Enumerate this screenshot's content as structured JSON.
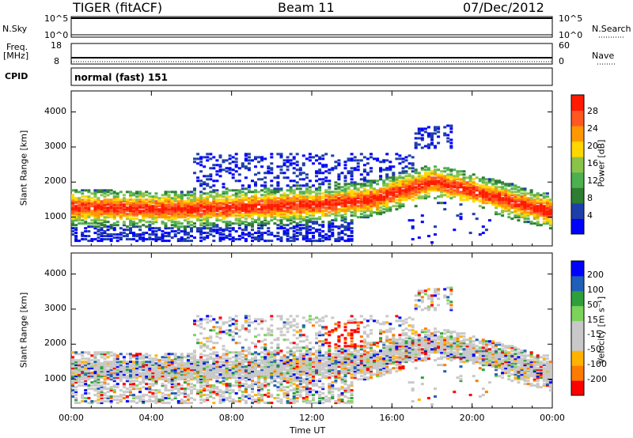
{
  "header": {
    "radar": "TIGER (fitACF)",
    "beam": "Beam 11",
    "date": "07/Dec/2012"
  },
  "sky_panel": {
    "left_label": "N.Sky",
    "right_label": "N.Search",
    "left_ticks": [
      "10^5",
      "10^0"
    ],
    "right_ticks": [
      "10^5",
      "10^0"
    ]
  },
  "freq_panel": {
    "left_label_1": "Freq.",
    "left_label_2": "[MHz]",
    "right_label": "Nave",
    "left_ticks": [
      "18",
      "8"
    ],
    "right_ticks": [
      "60",
      "0"
    ]
  },
  "cpid_panel": {
    "label": "CPID",
    "text": "normal (fast) 151"
  },
  "x_axis": {
    "ticks": [
      "00:00",
      "04:00",
      "08:00",
      "12:00",
      "16:00",
      "20:00",
      "00:00"
    ],
    "label": "Time UT"
  },
  "colors": {
    "power": [
      "#0000ff",
      "#1e3fa8",
      "#2e7d32",
      "#4caf50",
      "#8bc34a",
      "#ffd600",
      "#ff9800",
      "#ff5722",
      "#ff1a00"
    ],
    "velocity": [
      "#ff0000",
      "#ff7a00",
      "#ffb300",
      "#c8c8c8",
      "#c8c8c8",
      "#7bd35a",
      "#2f9f3c",
      "#1f5fb8",
      "#0000ff"
    ]
  },
  "chart_data": [
    {
      "type": "heatmap",
      "title": "",
      "xlabel": "",
      "ylabel": "Slant Range [km]",
      "ylim": [
        180,
        4600
      ],
      "yticks": [
        "1000",
        "2000",
        "3000",
        "4000"
      ],
      "colorbar_label": "Power [dB]",
      "colorbar_ticks": [
        "4",
        "8",
        "12",
        "16",
        "20",
        "24",
        "28"
      ],
      "colorbar_range": [
        0,
        32
      ],
      "features": [
        {
          "name": "main band",
          "t_start": 0,
          "t_end": 24,
          "range_km": [
            900,
            1600
          ]
        },
        {
          "name": "peak",
          "t": 18,
          "range_km": 2000
        }
      ]
    },
    {
      "type": "heatmap",
      "title": "",
      "xlabel": "Time UT",
      "ylabel": "Slant Range [km]",
      "ylim": [
        180,
        4600
      ],
      "yticks": [
        "1000",
        "2000",
        "3000",
        "4000"
      ],
      "colorbar_label": "Velocity [m s⁻¹]",
      "colorbar_ticks": [
        "200",
        "100",
        "50",
        "15",
        "-15",
        "-50",
        "-100",
        "-200"
      ],
      "colorbar_range": [
        -250,
        250
      ]
    }
  ]
}
